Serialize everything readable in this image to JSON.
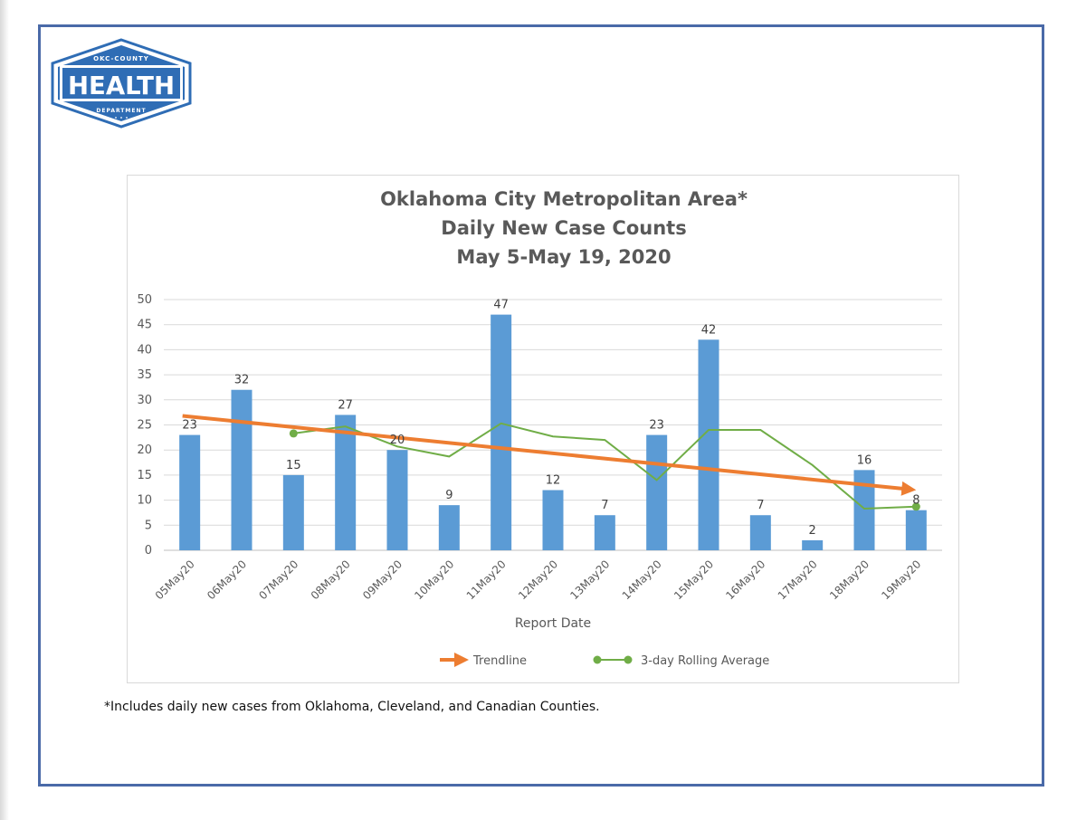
{
  "logo": {
    "top_text": "OKC-COUNTY",
    "main_text": "HEALTH",
    "bottom_text": "DEPARTMENT",
    "color": "#2f6db5"
  },
  "footnote": "*Includes daily new cases from Oklahoma, Cleveland, and Canadian Counties.",
  "chart_data": {
    "type": "bar",
    "title": [
      "Oklahoma City Metropolitan Area*",
      "Daily New Case Counts",
      "May 5-May 19, 2020"
    ],
    "xlabel": "Report Date",
    "ylabel": "",
    "ylim": [
      0,
      50
    ],
    "yticks": [
      0,
      5,
      10,
      15,
      20,
      25,
      30,
      35,
      40,
      45,
      50
    ],
    "grid": true,
    "categories": [
      "05May20",
      "06May20",
      "07May20",
      "08May20",
      "09May20",
      "10May20",
      "11May20",
      "12May20",
      "13May20",
      "14May20",
      "15May20",
      "16May20",
      "17May20",
      "18May20",
      "19May20"
    ],
    "series": [
      {
        "name": "Daily New Cases",
        "type": "bar",
        "color": "#5b9bd5",
        "values": [
          23,
          32,
          15,
          27,
          20,
          9,
          47,
          12,
          7,
          23,
          42,
          7,
          2,
          16,
          8
        ]
      },
      {
        "name": "3-day Rolling Average",
        "type": "line",
        "color": "#70ad47",
        "values": [
          null,
          null,
          23.3,
          24.7,
          20.7,
          18.7,
          25.3,
          22.7,
          22,
          14,
          24,
          24,
          17,
          8.3,
          8.7
        ]
      },
      {
        "name": "Trendline",
        "type": "line",
        "color": "#ed7d31",
        "start": 26.8,
        "end": 12.2
      }
    ],
    "legend": [
      "Trendline",
      "3-day Rolling Average"
    ],
    "legend_position": "bottom"
  }
}
